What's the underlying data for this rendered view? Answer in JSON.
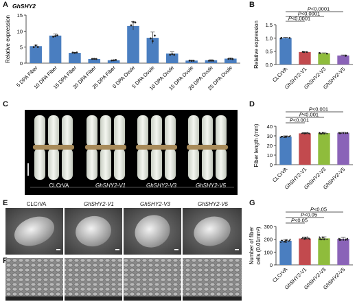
{
  "panels": {
    "A": "A",
    "B": "B",
    "C": "C",
    "D": "D",
    "E": "E",
    "F": "F",
    "G": "G"
  },
  "colors": {
    "bar_blue": "#4a7ec0",
    "red": "#c24a4e",
    "green": "#8fbc3c",
    "purple": "#8a63b8",
    "photo_bg": "#000000",
    "sem_bg": "#6b6b6b"
  },
  "chart_data": [
    {
      "panel": "A",
      "type": "bar",
      "title": "GhSHY2",
      "ylabel": "Relative expression",
      "ylim": [
        0,
        15
      ],
      "yticks": [
        0,
        5,
        10,
        15
      ],
      "categories": [
        "5 DPA Fiber",
        "10 DPA Fiber",
        "15 DPA Fiber",
        "20 DPA Fiber",
        "25 DPA Fiber",
        "0 DPA Ovule",
        "5 DPA Ovule",
        "10 DPA Ovule",
        "15 DPA Ovule",
        "20 DPA Ovule",
        "25 DPA Ovule"
      ],
      "values": [
        5.3,
        8.6,
        3.2,
        1.3,
        0.9,
        11.6,
        7.9,
        3.0,
        0.8,
        0.9,
        1.4
      ]
    },
    {
      "panel": "B",
      "type": "bar",
      "ylabel": "Relative expression",
      "ylim": [
        0,
        1.5
      ],
      "yticks": [
        0.0,
        0.5,
        1.0,
        1.5
      ],
      "categories": [
        "CLCrVA",
        "GhSHY2-V1",
        "GhSHY2-V3",
        "GhSHY2-V5"
      ],
      "values": [
        1.0,
        0.47,
        0.42,
        0.34
      ],
      "significance": [
        "P<0.0001",
        "P<0.0001",
        "P<0.0001"
      ]
    },
    {
      "panel": "D",
      "type": "bar",
      "ylabel": "Fiber length (mm)",
      "ylim": [
        0,
        40
      ],
      "yticks": [
        0,
        10,
        20,
        30,
        40
      ],
      "categories": [
        "CLCrVA",
        "GhSHY2-V1",
        "GhSHY2-V3",
        "GhSHY2-V5"
      ],
      "values": [
        29.2,
        32.6,
        32.8,
        33.2
      ],
      "significance": [
        "P<0.001",
        "P<0.001",
        "P<0.001"
      ]
    },
    {
      "panel": "G",
      "type": "bar",
      "ylabel": "Number of fiber cells (0.01mm²)",
      "ylim": [
        0,
        300
      ],
      "yticks": [
        0,
        100,
        200,
        300
      ],
      "categories": [
        "CLCrVA",
        "GhSHY2-V1",
        "GhSHY2-V3",
        "GhSHY2-V5"
      ],
      "values": [
        188,
        206,
        207,
        203
      ],
      "significance": [
        "P<0.05",
        "P<0.05",
        "P<0.05"
      ]
    }
  ],
  "photo_c": {
    "labels": [
      "CLCrVA",
      "GhSHY2-V1",
      "GhSHY2-V3",
      "GhSHY2-V5"
    ]
  },
  "photo_e": {
    "labels": [
      "CLCrVA",
      "GhSHY2-V1",
      "GhSHY2-V3",
      "GhSHY2-V5"
    ]
  }
}
